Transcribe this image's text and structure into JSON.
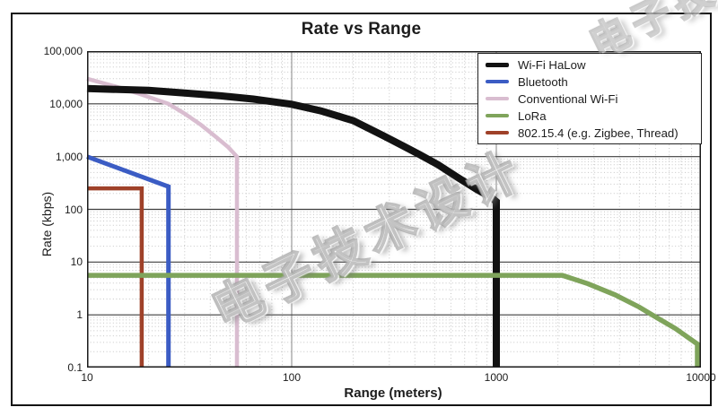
{
  "watermark": {
    "text": "电子技术设计"
  },
  "chart_data": {
    "type": "line",
    "title": "Rate vs Range",
    "xlabel": "Range (meters)",
    "ylabel": "Rate (kbps)",
    "xscale": "log",
    "yscale": "log",
    "xlim": [
      10,
      10000
    ],
    "ylim": [
      0.1,
      100000
    ],
    "x_ticks": [
      "10",
      "100",
      "1000",
      "10000"
    ],
    "y_ticks": [
      "100,000",
      "10,000",
      "1,000",
      "100",
      "10",
      "1",
      "0.1"
    ],
    "grid": "major solid + minor dotted (log)",
    "legend_position": "top-right",
    "series": [
      {
        "name": "Wi-Fi HaLow",
        "color": "#121212",
        "width": 8,
        "z": 2,
        "points": [
          [
            10,
            19500
          ],
          [
            20,
            18000
          ],
          [
            30,
            16000
          ],
          [
            45,
            14200
          ],
          [
            65,
            12300
          ],
          [
            100,
            9800
          ],
          [
            140,
            7300
          ],
          [
            200,
            4800
          ],
          [
            280,
            2500
          ],
          [
            350,
            1600
          ],
          [
            420,
            1100
          ],
          [
            520,
            700
          ],
          [
            650,
            400
          ],
          [
            800,
            240
          ],
          [
            950,
            165
          ],
          [
            1000,
            140
          ],
          [
            1000,
            0.1
          ]
        ]
      },
      {
        "name": "Bluetooth",
        "color": "#3b5cc4",
        "width": 5,
        "z": 4,
        "points": [
          [
            10,
            1000
          ],
          [
            25,
            270
          ],
          [
            25,
            0.1
          ]
        ]
      },
      {
        "name": "Conventional Wi-Fi",
        "color": "#d9bdd0",
        "width": 4.5,
        "z": 1,
        "points": [
          [
            10,
            30000
          ],
          [
            14,
            21000
          ],
          [
            18,
            15500
          ],
          [
            25,
            10000
          ],
          [
            30,
            6500
          ],
          [
            36,
            4000
          ],
          [
            43,
            2300
          ],
          [
            49,
            1500
          ],
          [
            54,
            1000
          ],
          [
            54,
            0.1
          ]
        ]
      },
      {
        "name": "LoRa",
        "color": "#7fa45b",
        "width": 5.5,
        "z": 5,
        "points": [
          [
            10,
            5.6
          ],
          [
            2100,
            5.6
          ],
          [
            2800,
            3.9
          ],
          [
            3800,
            2.4
          ],
          [
            5000,
            1.4
          ],
          [
            5900,
            0.95
          ],
          [
            7500,
            0.55
          ],
          [
            9600,
            0.28
          ],
          [
            9600,
            0.1
          ]
        ]
      },
      {
        "name": "802.15.4 (e.g. Zigbee, Thread)",
        "color": "#9f4129",
        "width": 4.5,
        "z": 3,
        "points": [
          [
            10,
            250
          ],
          [
            18.5,
            250
          ],
          [
            18.5,
            0.1
          ]
        ]
      }
    ]
  }
}
